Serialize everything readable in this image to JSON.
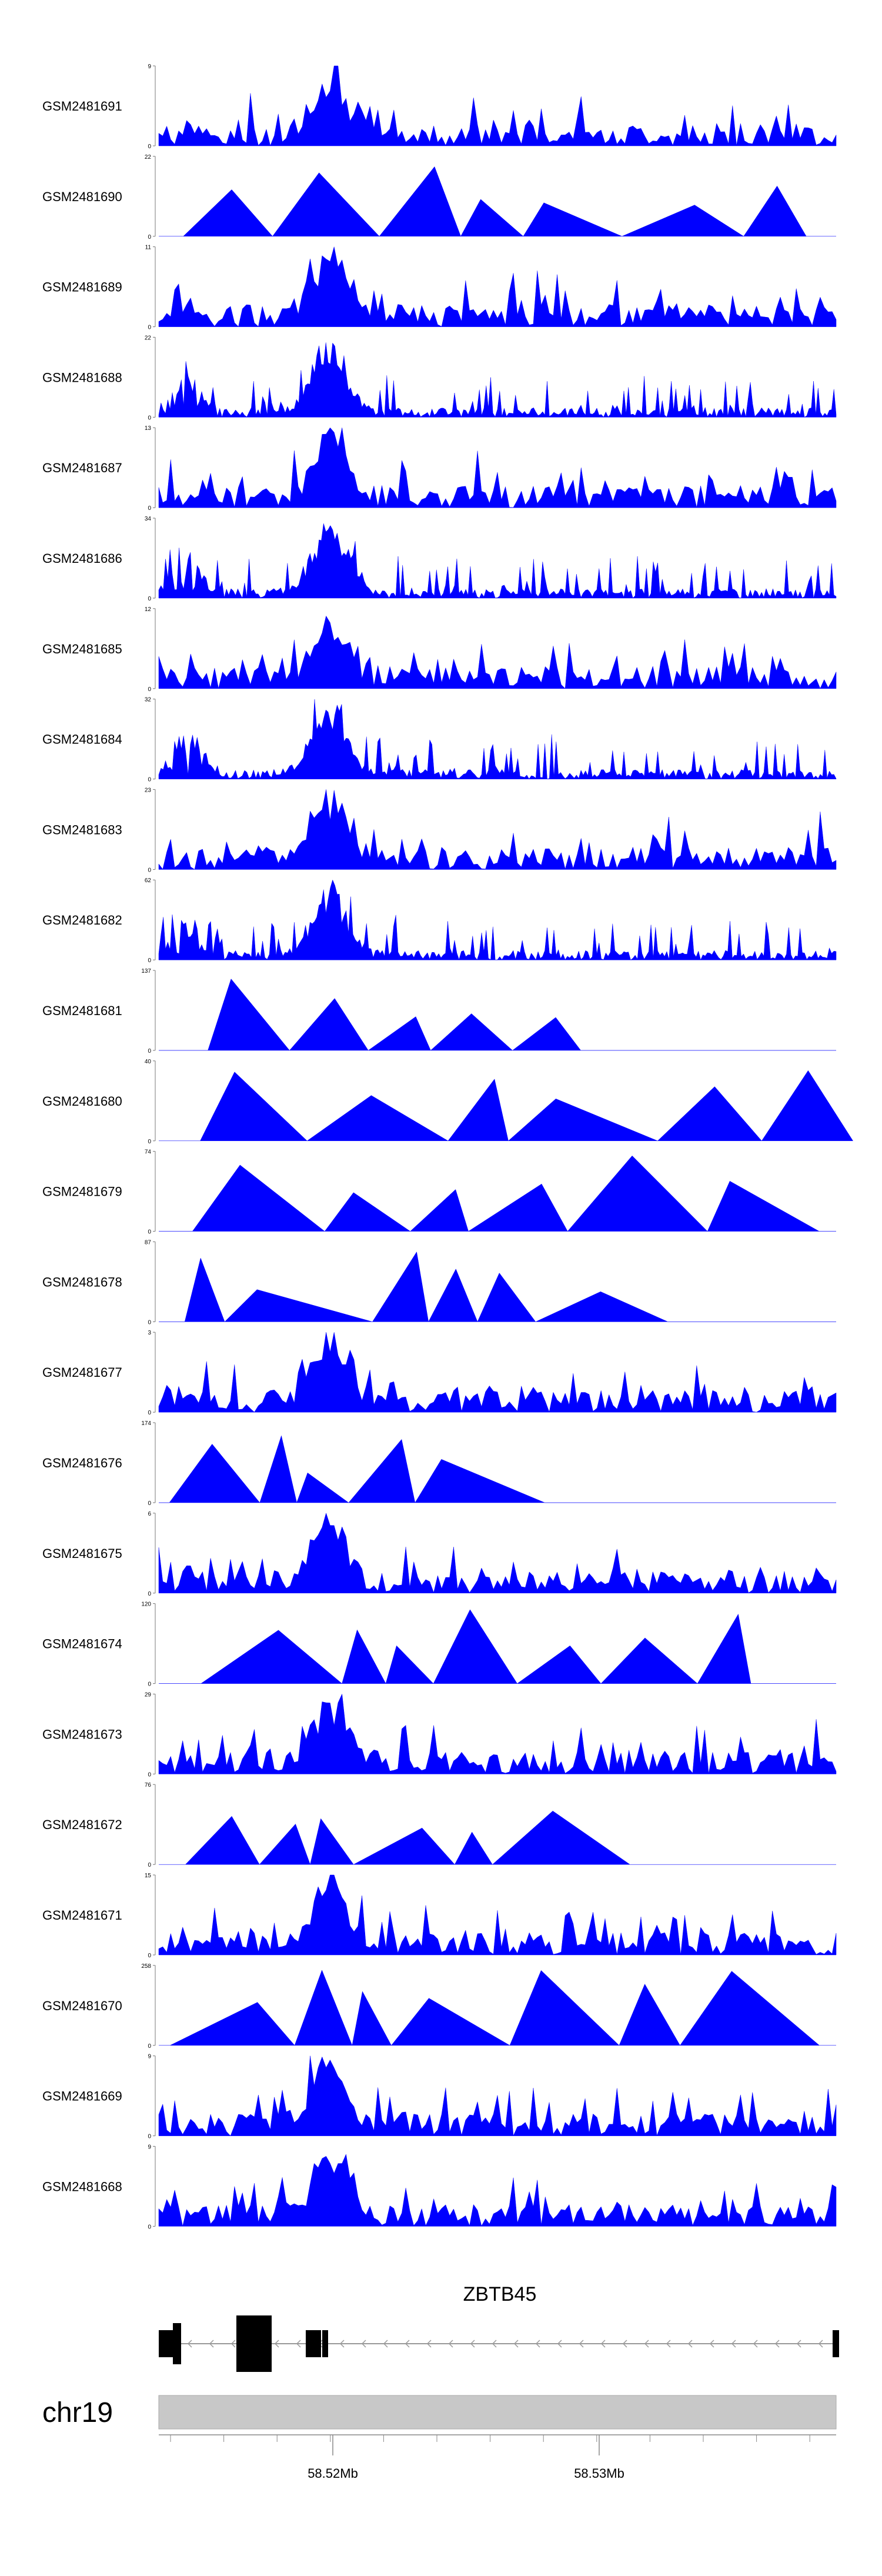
{
  "chart_data": {
    "type": "area",
    "title": "",
    "gene": "ZBTB45",
    "chromosome": "chr19",
    "x_axis": {
      "ticks": [
        "58.52Mb",
        "58.53Mb"
      ]
    },
    "colors": {
      "track_fill": "#0000ff",
      "gene_model": "#000000",
      "ideogram": "#c8c8c8"
    },
    "tracks": [
      {
        "name": "GSM2481691",
        "ymax": 9,
        "style": "noisy"
      },
      {
        "name": "GSM2481690",
        "ymax": 22,
        "style": "tri"
      },
      {
        "name": "GSM2481689",
        "ymax": 11,
        "style": "noisy"
      },
      {
        "name": "GSM2481688",
        "ymax": 22,
        "style": "dense"
      },
      {
        "name": "GSM2481687",
        "ymax": 13,
        "style": "noisy"
      },
      {
        "name": "GSM2481686",
        "ymax": 34,
        "style": "dense"
      },
      {
        "name": "GSM2481685",
        "ymax": 12,
        "style": "noisy"
      },
      {
        "name": "GSM2481684",
        "ymax": 32,
        "style": "dense"
      },
      {
        "name": "GSM2481683",
        "ymax": 23,
        "style": "noisy"
      },
      {
        "name": "GSM2481682",
        "ymax": 62,
        "style": "dense"
      },
      {
        "name": "GSM2481681",
        "ymax": 137,
        "style": "tri"
      },
      {
        "name": "GSM2481680",
        "ymax": 40,
        "style": "tri"
      },
      {
        "name": "GSM2481679",
        "ymax": 74,
        "style": "tri"
      },
      {
        "name": "GSM2481678",
        "ymax": 87,
        "style": "tri"
      },
      {
        "name": "GSM2481677",
        "ymax": 3,
        "style": "noisy"
      },
      {
        "name": "GSM2481676",
        "ymax": 174,
        "style": "tri"
      },
      {
        "name": "GSM2481675",
        "ymax": 6,
        "style": "noisy"
      },
      {
        "name": "GSM2481674",
        "ymax": 120,
        "style": "tri"
      },
      {
        "name": "GSM2481673",
        "ymax": 29,
        "style": "noisy"
      },
      {
        "name": "GSM2481672",
        "ymax": 76,
        "style": "tri"
      },
      {
        "name": "GSM2481671",
        "ymax": 15,
        "style": "noisy"
      },
      {
        "name": "GSM2481670",
        "ymax": 258,
        "style": "tri"
      },
      {
        "name": "GSM2481669",
        "ymax": 9,
        "style": "noisy"
      },
      {
        "name": "GSM2481668",
        "ymax": 9,
        "style": "noisy"
      }
    ]
  }
}
